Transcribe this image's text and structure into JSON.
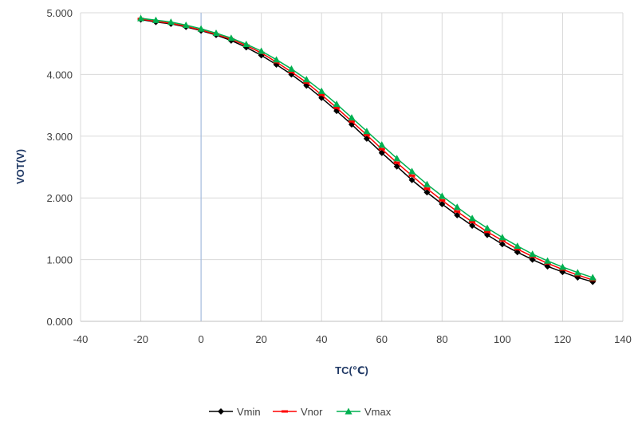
{
  "chart_data": {
    "type": "line",
    "xlabel": "TC(℃)",
    "ylabel": "VOT(V)",
    "xlim": [
      -40,
      140
    ],
    "ylim": [
      0,
      5
    ],
    "x_ticks": [
      "-40",
      "-20",
      "0",
      "20",
      "40",
      "60",
      "80",
      "100",
      "120",
      "140"
    ],
    "y_ticks": [
      "0.000",
      "1.000",
      "2.000",
      "3.000",
      "4.000",
      "5.000"
    ],
    "grid": true,
    "legend_position": "bottom",
    "x": [
      -20,
      -15,
      -10,
      -5,
      0,
      5,
      10,
      15,
      20,
      25,
      30,
      35,
      40,
      45,
      50,
      55,
      60,
      65,
      70,
      75,
      80,
      85,
      90,
      95,
      100,
      105,
      110,
      115,
      120,
      125,
      130
    ],
    "series": [
      {
        "name": "Vmin",
        "color": "#000000",
        "marker": "diamond",
        "values": [
          4.89,
          4.85,
          4.82,
          4.77,
          4.71,
          4.64,
          4.55,
          4.44,
          4.31,
          4.16,
          4.0,
          3.82,
          3.62,
          3.41,
          3.19,
          2.96,
          2.73,
          2.51,
          2.29,
          2.09,
          1.9,
          1.72,
          1.55,
          1.4,
          1.25,
          1.12,
          1.0,
          0.89,
          0.8,
          0.71,
          0.64
        ]
      },
      {
        "name": "Vnor",
        "color": "#ff0000",
        "marker": "dash",
        "values": [
          4.9,
          4.86,
          4.83,
          4.78,
          4.72,
          4.65,
          4.57,
          4.47,
          4.35,
          4.2,
          4.04,
          3.87,
          3.67,
          3.46,
          3.24,
          3.02,
          2.79,
          2.57,
          2.36,
          2.15,
          1.96,
          1.78,
          1.61,
          1.45,
          1.31,
          1.17,
          1.05,
          0.94,
          0.84,
          0.75,
          0.67
        ]
      },
      {
        "name": "Vmax",
        "color": "#00b050",
        "marker": "triangle",
        "values": [
          4.91,
          4.88,
          4.85,
          4.8,
          4.74,
          4.67,
          4.59,
          4.49,
          4.38,
          4.24,
          4.09,
          3.92,
          3.73,
          3.52,
          3.3,
          3.08,
          2.86,
          2.64,
          2.43,
          2.22,
          2.03,
          1.85,
          1.67,
          1.51,
          1.36,
          1.22,
          1.09,
          0.98,
          0.88,
          0.79,
          0.71
        ]
      }
    ]
  }
}
